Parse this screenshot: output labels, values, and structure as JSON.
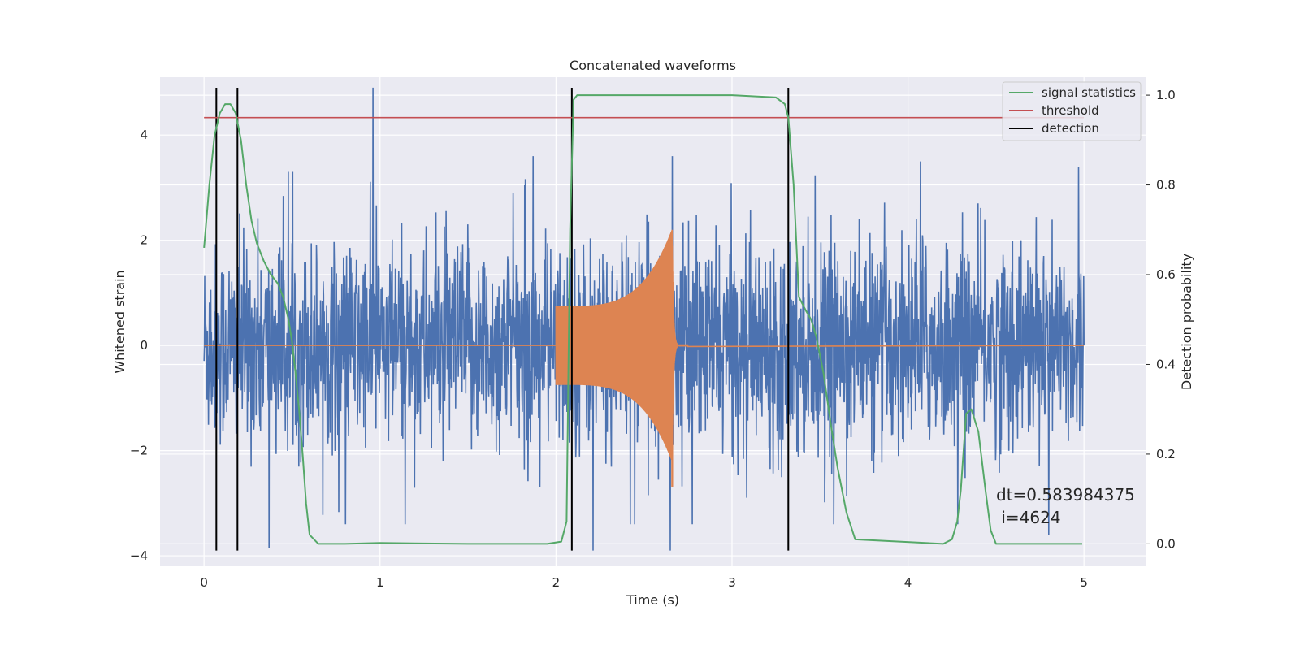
{
  "chart_data": {
    "type": "line",
    "title": "Concatenated waveforms",
    "xlabel": "Time (s)",
    "ylabel": "Whitened strain",
    "y2label": "Detection probability",
    "xlim": [
      -0.25,
      5.35
    ],
    "ylim": [
      -4.2,
      5.1
    ],
    "y2lim": [
      -0.05,
      1.04
    ],
    "xticks": [
      "0",
      "1",
      "2",
      "3",
      "4",
      "5"
    ],
    "yticks": [
      "−4",
      "−2",
      "0",
      "2",
      "4"
    ],
    "y2ticks": [
      "0.0",
      "0.2",
      "0.4",
      "0.6",
      "0.8",
      "1.0"
    ],
    "grid": true,
    "legend_position": "top-right",
    "legend": [
      {
        "label": "signal statistics",
        "color": "#55a868"
      },
      {
        "label": "threshold",
        "color": "#c44e52"
      },
      {
        "label": "detection",
        "color": "#000000"
      }
    ],
    "series": [
      {
        "name": "strain",
        "color": "#4c72b0",
        "axis": "left",
        "description_type": "noise",
        "x_range": [
          0,
          5
        ],
        "amplitude_envelope": 1.6,
        "peaks": [
          [
            0.96,
            4.9
          ],
          [
            1.87,
            3.6
          ],
          [
            2.66,
            3.6
          ],
          [
            4.07,
            3.5
          ],
          [
            4.97,
            3.4
          ],
          [
            0.37,
            -3.85
          ],
          [
            2.21,
            -3.9
          ],
          [
            2.65,
            -3.9
          ],
          [
            4.8,
            -3.6
          ]
        ]
      },
      {
        "name": "injected waveform",
        "color": "#dd8452",
        "axis": "left",
        "x_start": 2.0,
        "x_peak": 2.66,
        "x_end": 2.7,
        "start_amplitude": 0.75,
        "peak_amplitude": 2.2,
        "min_at_peak": -2.7
      },
      {
        "name": "signal statistics",
        "color": "#55a868",
        "axis": "right",
        "x": [
          0.0,
          0.03,
          0.06,
          0.09,
          0.12,
          0.15,
          0.18,
          0.21,
          0.24,
          0.27,
          0.3,
          0.34,
          0.38,
          0.42,
          0.45,
          0.48,
          0.5,
          0.52,
          0.54,
          0.56,
          0.58,
          0.6,
          0.65,
          0.8,
          1.0,
          1.5,
          1.95,
          2.03,
          2.06,
          2.08,
          2.1,
          2.12,
          2.2,
          2.5,
          3.0,
          3.25,
          3.3,
          3.32,
          3.35,
          3.38,
          3.42,
          3.45,
          3.48,
          3.52,
          3.56,
          3.6,
          3.65,
          3.7,
          4.2,
          4.25,
          4.28,
          4.3,
          4.33,
          4.36,
          4.4,
          4.44,
          4.47,
          4.5,
          4.6,
          4.99
        ],
        "y": [
          0.66,
          0.8,
          0.91,
          0.96,
          0.98,
          0.98,
          0.96,
          0.9,
          0.8,
          0.72,
          0.67,
          0.63,
          0.6,
          0.58,
          0.55,
          0.5,
          0.45,
          0.38,
          0.3,
          0.2,
          0.09,
          0.02,
          0.0,
          0.0,
          0.002,
          0.0,
          0.0,
          0.005,
          0.05,
          0.7,
          0.99,
          1.0,
          1.0,
          1.0,
          1.0,
          0.995,
          0.98,
          0.95,
          0.8,
          0.55,
          0.52,
          0.5,
          0.46,
          0.38,
          0.27,
          0.17,
          0.07,
          0.01,
          0.0,
          0.01,
          0.05,
          0.12,
          0.29,
          0.3,
          0.25,
          0.12,
          0.03,
          0.0,
          0.0,
          0.0
        ]
      },
      {
        "name": "threshold",
        "color": "#c44e52",
        "axis": "right",
        "value": 0.95,
        "x_range": [
          0,
          5
        ]
      }
    ],
    "detections": [
      0.07,
      0.19,
      2.09,
      3.32
    ],
    "detection_y_range": [
      -3.9,
      4.9
    ],
    "annotation": "dt=0.583984375\n i=4624"
  }
}
